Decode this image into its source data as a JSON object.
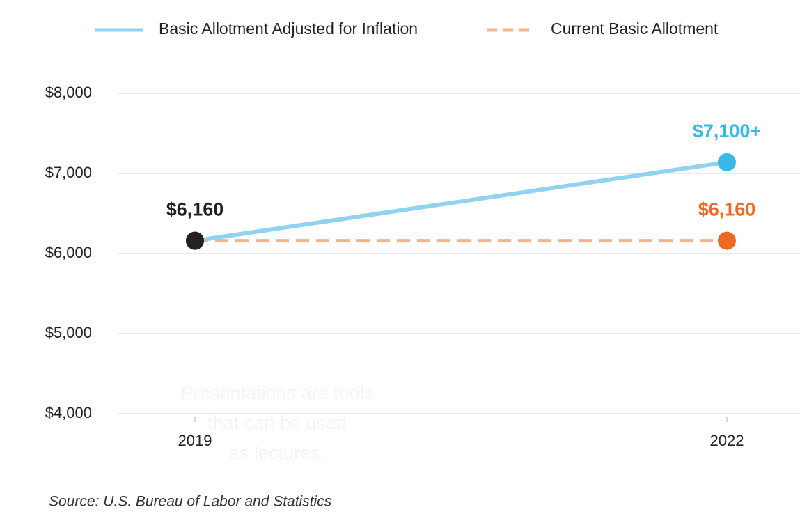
{
  "chart_data": {
    "type": "line",
    "categories": [
      "2019",
      "2022"
    ],
    "series": [
      {
        "name": "Basic Allotment Adjusted for Inflation",
        "color": "#8fd3f0",
        "dash": false,
        "values": [
          6160,
          7140
        ],
        "value_labels": [
          null,
          "$7,100+"
        ],
        "marker_colors": [
          "#222222",
          "#3bb8e8"
        ]
      },
      {
        "name": "Current Basic Allotment",
        "color": "#f2b48f",
        "dash": true,
        "values": [
          6160,
          6160
        ],
        "value_labels": [
          "$6,160",
          "$6,160"
        ],
        "marker_colors": [
          "#222222",
          "#ee6a24"
        ]
      }
    ],
    "ylim": [
      4000,
      8000
    ],
    "yticks": [
      {
        "value": 4000,
        "label": "$4,000"
      },
      {
        "value": 5000,
        "label": "$5,000"
      },
      {
        "value": 6000,
        "label": "$6,000"
      },
      {
        "value": 7000,
        "label": "$7,000"
      },
      {
        "value": 8000,
        "label": "$8,000"
      }
    ],
    "grid": true,
    "legend": "top",
    "annotation": "Presentations are tools that can be used as lectures.",
    "source": "Source: U.S. Bureau of Labor and Statistics"
  }
}
